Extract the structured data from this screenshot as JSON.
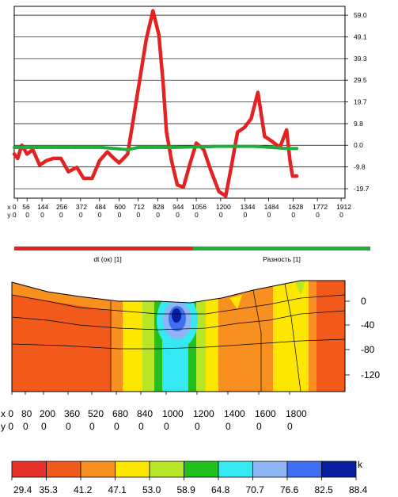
{
  "chart_data": [
    {
      "type": "line",
      "title": "",
      "x": [
        0,
        56,
        144,
        256,
        372,
        484,
        600,
        712,
        828,
        944,
        1056,
        1200,
        1344,
        1484,
        1628,
        1772,
        1912
      ],
      "x_tick_labels": [
        "x 0",
        "56",
        "144",
        "256",
        "372",
        "484",
        "600",
        "712",
        "828",
        "944",
        "1056",
        "1200",
        "1344",
        "1484",
        "1628",
        "1772",
        "1912"
      ],
      "y_row_labels": [
        "y 0",
        "0",
        "0",
        "0",
        "0",
        "0",
        "0",
        "0",
        "0",
        "0",
        "0",
        "0",
        "0",
        "0",
        "0",
        "0",
        "0"
      ],
      "y_ticks": [
        "59.0",
        "49.1",
        "39.3",
        "29.5",
        "19.7",
        "9.8",
        "0.0",
        "-9.8",
        "-19.7"
      ],
      "ylim": [
        -24,
        63
      ],
      "xlim": [
        -20,
        1935
      ],
      "grid": true,
      "series": [
        {
          "name": "dt (ок) [1]",
          "color": "#e32323",
          "points": [
            [
              -20,
              -4
            ],
            [
              0,
              -6
            ],
            [
              25,
              0
            ],
            [
              56,
              -4
            ],
            [
              90,
              -2
            ],
            [
              130,
              -9
            ],
            [
              170,
              -7
            ],
            [
              210,
              -6
            ],
            [
              256,
              -6
            ],
            [
              300,
              -12
            ],
            [
              350,
              -10
            ],
            [
              390,
              -15
            ],
            [
              440,
              -15
            ],
            [
              484,
              -7
            ],
            [
              530,
              -3
            ],
            [
              570,
              -6
            ],
            [
              600,
              -8
            ],
            [
              650,
              -4
            ],
            [
              712,
              25
            ],
            [
              760,
              48
            ],
            [
              800,
              61
            ],
            [
              835,
              50
            ],
            [
              860,
              28
            ],
            [
              880,
              6
            ],
            [
              910,
              -7
            ],
            [
              944,
              -18
            ],
            [
              980,
              -19
            ],
            [
              1020,
              -8
            ],
            [
              1056,
              1
            ],
            [
              1100,
              -2
            ],
            [
              1140,
              -11
            ],
            [
              1190,
              -21
            ],
            [
              1230,
              -23
            ],
            [
              1265,
              -9
            ],
            [
              1300,
              6
            ],
            [
              1340,
              8
            ],
            [
              1380,
              12
            ],
            [
              1420,
              24
            ],
            [
              1460,
              4
            ],
            [
              1500,
              2
            ],
            [
              1550,
              -1
            ],
            [
              1590,
              7
            ],
            [
              1610,
              -7
            ],
            [
              1625,
              -14
            ],
            [
              1650,
              -14
            ]
          ]
        },
        {
          "name": "Разность [1]",
          "color": "#1fae3a",
          "points": [
            [
              -20,
              -1
            ],
            [
              100,
              -1
            ],
            [
              300,
              -1
            ],
            [
              500,
              -1
            ],
            [
              650,
              -2
            ],
            [
              712,
              -1
            ],
            [
              900,
              -1
            ],
            [
              1200,
              -0.5
            ],
            [
              1400,
              -0.5
            ],
            [
              1600,
              -1.5
            ],
            [
              1650,
              -1.5
            ]
          ]
        }
      ],
      "legend": "bottom"
    },
    {
      "type": "heatmap",
      "title": "",
      "x_tick_labels": [
        "x 0",
        "80",
        "200",
        "360",
        "520",
        "680",
        "840",
        "1000",
        "1200",
        "1400",
        "1600",
        "1800"
      ],
      "y_row_labels": [
        "y 0",
        "0",
        "0",
        "0",
        "0",
        "0",
        "0",
        "0",
        "0",
        "0",
        "0",
        "0"
      ],
      "y_ticks": [
        "0",
        "-40",
        "-80",
        "-120"
      ],
      "colorbar": {
        "unit": "k",
        "labels": [
          "29.4",
          "35.3",
          "41.2",
          "47.1",
          "53.0",
          "58.9",
          "64.8",
          "70.7",
          "76.6",
          "82.5",
          "88.4"
        ],
        "colors": [
          "#e5312a",
          "#f25a1c",
          "#f7901e",
          "#fde700",
          "#b7e628",
          "#22c01f",
          "#35e8f2",
          "#8fb5f6",
          "#3f6ff2",
          "#071f9e"
        ]
      }
    }
  ]
}
